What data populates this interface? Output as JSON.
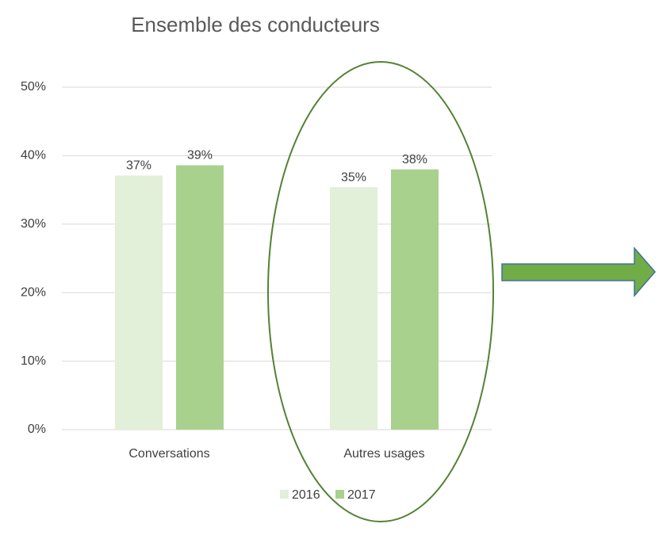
{
  "chart_data": {
    "type": "bar",
    "title": "Ensemble des conducteurs",
    "categories": [
      "Conversations",
      "Autres usages"
    ],
    "series": [
      {
        "name": "2016",
        "color": "#e2efd9",
        "values": [
          37.1,
          35.4
        ],
        "value_labels": [
          "37%",
          "35%"
        ]
      },
      {
        "name": "2017",
        "color": "#a9d18e",
        "values": [
          38.6,
          38.0
        ],
        "value_labels": [
          "39%",
          "38%"
        ]
      }
    ],
    "ylim": [
      0,
      50
    ],
    "yticks": [
      {
        "value": 0,
        "label": "0%"
      },
      {
        "value": 10,
        "label": "10%"
      },
      {
        "value": 20,
        "label": "20%"
      },
      {
        "value": 30,
        "label": "30%"
      },
      {
        "value": 40,
        "label": "40%"
      },
      {
        "value": 50,
        "label": "50%"
      }
    ],
    "grid": true,
    "legend": "bottom"
  }
}
